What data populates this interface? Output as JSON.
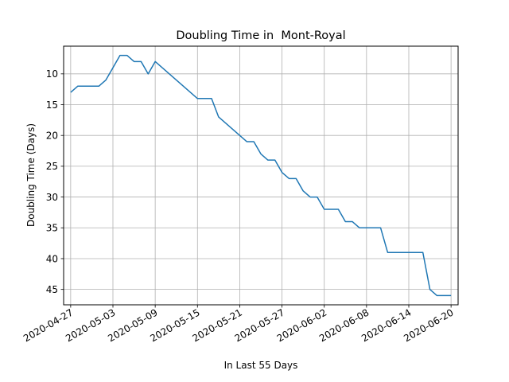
{
  "chart_data": {
    "type": "line",
    "title": "Doubling Time in  Mont-Royal",
    "xlabel": "In Last 55 Days",
    "ylabel": "Doubling Time (Days)",
    "y_inverted": true,
    "ylim": [
      47.5,
      5.5
    ],
    "xlim": [
      "2020-04-26",
      "2020-06-21"
    ],
    "grid": true,
    "line_color": "#1f77b4",
    "x_ticks": [
      "2020-04-27",
      "2020-05-03",
      "2020-05-09",
      "2020-05-15",
      "2020-05-21",
      "2020-05-27",
      "2020-06-02",
      "2020-06-08",
      "2020-06-14",
      "2020-06-20"
    ],
    "y_ticks": [
      10,
      15,
      20,
      25,
      30,
      35,
      40,
      45
    ],
    "series": [
      {
        "x": [
          "2020-04-27",
          "2020-04-28",
          "2020-04-29",
          "2020-04-30",
          "2020-05-01",
          "2020-05-02",
          "2020-05-03",
          "2020-05-04",
          "2020-05-05",
          "2020-05-06",
          "2020-05-07",
          "2020-05-08",
          "2020-05-09",
          "2020-05-10",
          "2020-05-11",
          "2020-05-12",
          "2020-05-13",
          "2020-05-14",
          "2020-05-15",
          "2020-05-16",
          "2020-05-17",
          "2020-05-18",
          "2020-05-19",
          "2020-05-20",
          "2020-05-21",
          "2020-05-22",
          "2020-05-23",
          "2020-05-24",
          "2020-05-25",
          "2020-05-26",
          "2020-05-27",
          "2020-05-28",
          "2020-05-29",
          "2020-05-30",
          "2020-05-31",
          "2020-06-01",
          "2020-06-02",
          "2020-06-03",
          "2020-06-04",
          "2020-06-05",
          "2020-06-06",
          "2020-06-07",
          "2020-06-08",
          "2020-06-09",
          "2020-06-10",
          "2020-06-11",
          "2020-06-12",
          "2020-06-13",
          "2020-06-14",
          "2020-06-15",
          "2020-06-16",
          "2020-06-17",
          "2020-06-18",
          "2020-06-19",
          "2020-06-20"
        ],
        "values": [
          13,
          12,
          12,
          12,
          12,
          11,
          9,
          7,
          7,
          8,
          8,
          10,
          8,
          9,
          10,
          11,
          12,
          13,
          14,
          14,
          14,
          17,
          18,
          19,
          20,
          21,
          21,
          23,
          24,
          24,
          26,
          27,
          27,
          29,
          30,
          30,
          32,
          32,
          32,
          34,
          34,
          35,
          35,
          35,
          35,
          39,
          39,
          39,
          39,
          39,
          39,
          45,
          46,
          46,
          46
        ]
      }
    ]
  }
}
